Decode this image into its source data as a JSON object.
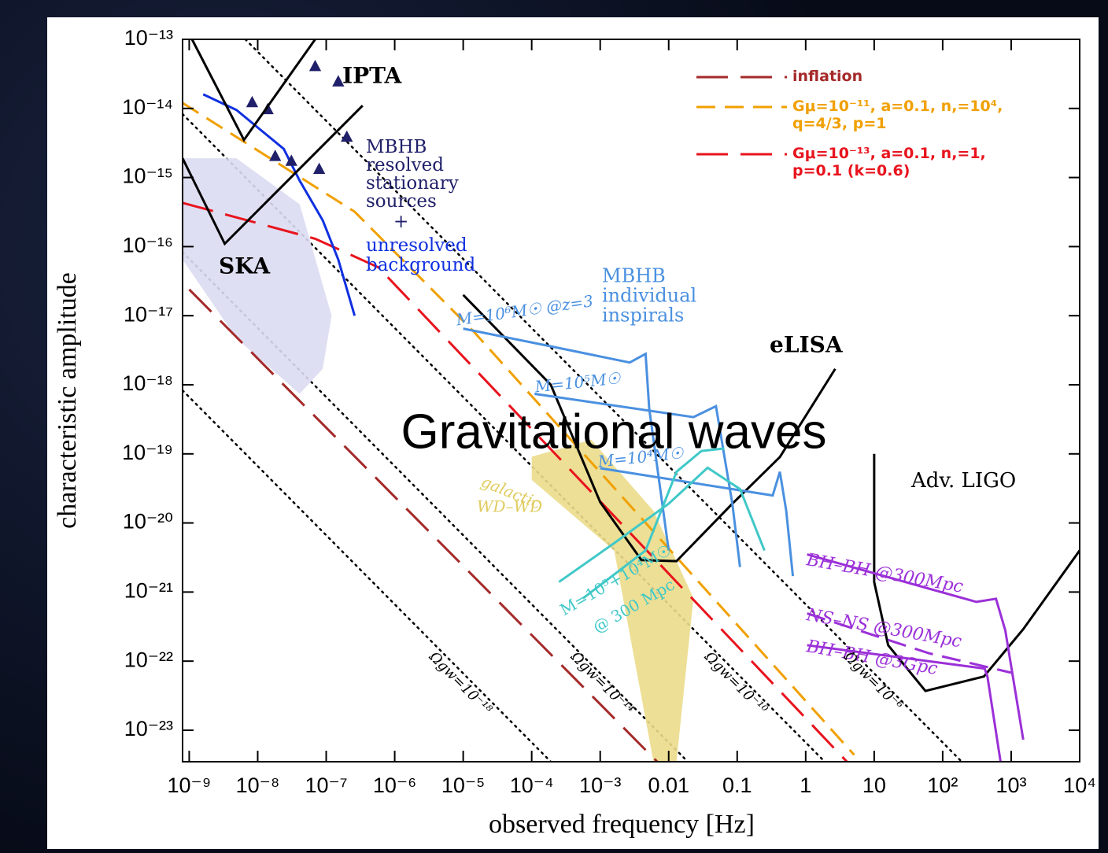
{
  "chart_data": {
    "type": "line",
    "title": "Gravitational waves",
    "x_label": "observed frequency [Hz]",
    "y_label": "characteristic amplitude",
    "xscale": "log",
    "yscale": "log",
    "xlim": [
      8e-10,
      10000
    ],
    "ylim": [
      3.5e-24,
      1e-13
    ],
    "xticks": [
      {
        "value": 1e-09,
        "label": "10⁻⁹"
      },
      {
        "value": 1e-08,
        "label": "10⁻⁸"
      },
      {
        "value": 1e-07,
        "label": "10⁻⁷"
      },
      {
        "value": 1e-06,
        "label": "10⁻⁶"
      },
      {
        "value": 1e-05,
        "label": "10⁻⁵"
      },
      {
        "value": 0.0001,
        "label": "10⁻⁴"
      },
      {
        "value": 0.001,
        "label": "10⁻³"
      },
      0.01,
      0.1,
      1,
      10,
      {
        "value": 100,
        "label": "10²"
      },
      {
        "value": 1000,
        "label": "10³"
      },
      {
        "value": 10000,
        "label": "10⁴"
      }
    ],
    "yticks": [
      {
        "value": 1e-13,
        "label": "10⁻¹³"
      },
      {
        "value": 1e-14,
        "label": "10⁻¹⁴"
      },
      {
        "value": 1e-15,
        "label": "10⁻¹⁵"
      },
      {
        "value": 1e-16,
        "label": "10⁻¹⁶"
      },
      {
        "value": 1e-17,
        "label": "10⁻¹⁷"
      },
      {
        "value": 1e-18,
        "label": "10⁻¹⁸"
      },
      {
        "value": 1e-19,
        "label": "10⁻¹⁹"
      },
      {
        "value": 1e-20,
        "label": "10⁻²⁰"
      },
      {
        "value": 1e-21,
        "label": "10⁻²¹"
      },
      {
        "value": 1e-22,
        "label": "10⁻²²"
      },
      {
        "value": 1e-23,
        "label": "10⁻²³"
      }
    ],
    "legend": "upper right",
    "series": [
      {
        "type": "line",
        "dash": "dotted",
        "color": "#000000",
        "x": [
          8e-10,
          0.00019
        ],
        "values": [
          8.3e-19,
          3.5e-24
        ]
      },
      {
        "type": "line",
        "dash": "dotted",
        "color": "#000000",
        "x": [
          8e-10,
          0.019
        ],
        "values": [
          8.3e-17,
          3.5e-24
        ]
      },
      {
        "type": "line",
        "dash": "dotted",
        "color": "#000000",
        "x": [
          8e-10,
          1.9
        ],
        "values": [
          8.3e-15,
          3.5e-24
        ]
      },
      {
        "type": "line",
        "dash": "dotted",
        "color": "#000000",
        "x": [
          6.6e-09,
          190
        ],
        "values": [
          1e-13,
          3.5e-24
        ]
      },
      {
        "type": "area",
        "color": "#dcdcf2",
        "x": [
          8e-10,
          4.9e-09,
          4.1e-08,
          1.2e-07,
          8.9e-08,
          4.1e-08,
          4.9e-09,
          8e-10
        ],
        "values": [
          1.9e-15,
          1.9e-15,
          4.1e-16,
          1e-17,
          1.7e-18,
          7.4e-19,
          4.7e-18,
          6.5e-17
        ]
      },
      {
        "type": "area",
        "color": "#ebdc8a",
        "x": [
          0.0001,
          0.00074,
          0.006,
          0.023,
          0.013,
          0.006,
          0.0016,
          0.0001
        ],
        "values": [
          9.1e-20,
          1.6e-19,
          1.5e-20,
          8.1e-22,
          3.5e-24,
          3.5e-24,
          4e-21,
          4.2e-20
        ]
      },
      {
        "type": "line",
        "dash": "long",
        "name": "inflation",
        "color": "#a52a2a",
        "x": [
          1e-09,
          0.007
        ],
        "values": [
          2.4e-17,
          3.4e-24
        ]
      },
      {
        "type": "line",
        "dash": "dashed",
        "name": "Gμ=10⁻¹¹, a=0.1, n,=10⁴, q=4/3, p=1",
        "color": "#f0a000",
        "x": [
          8e-10,
          2.6e-07,
          1.4e-05,
          5.1
        ],
        "values": [
          1.2e-14,
          3.2e-16,
          6e-18,
          4.4e-24
        ]
      },
      {
        "type": "line",
        "dash": "long",
        "name": "Gμ=10⁻¹³, a=0.1, n,=1, p=0.1 (k=0.6)",
        "color": "#e8141e",
        "x": [
          8e-10,
          6.9e-08,
          5.8e-07,
          4
        ],
        "values": [
          4.3e-16,
          1.3e-16,
          5e-17,
          3.5e-24
        ]
      },
      {
        "type": "line",
        "dash": "solid",
        "color": "#1030e0",
        "x": [
          1.6e-09,
          4.9e-09,
          1.1e-08,
          2.4e-08,
          4.1e-08,
          8.9e-08,
          1.5e-07,
          2.6e-07
        ],
        "values": [
          1.6e-14,
          9.5e-15,
          4.9e-15,
          2.6e-15,
          9e-16,
          2.4e-16,
          6.5e-17,
          1e-17
        ]
      },
      {
        "type": "scatter",
        "color": "#20206a",
        "x": [
          8.3e-09,
          1.4e-08,
          3.1e-08,
          1.8e-08,
          7.9e-08,
          1.5e-07,
          2e-07,
          6.9e-08
        ],
        "values": [
          1.2e-14,
          9.5e-15,
          1.7e-15,
          2e-15,
          1.3e-15,
          2.4e-14,
          3.8e-15,
          4e-14
        ]
      },
      {
        "type": "line",
        "dash": "solid",
        "color": "#000000",
        "x": [
          8e-10,
          3.3e-09,
          3.4e-07
        ],
        "values": [
          1.9e-15,
          1.1e-16,
          1.1e-14
        ]
      },
      {
        "type": "line",
        "dash": "solid",
        "color": "#000000",
        "x": [
          1.1e-09,
          6.3e-09,
          6.9e-08
        ],
        "values": [
          1e-13,
          3.5e-15,
          1e-13
        ]
      },
      {
        "type": "line",
        "dash": "solid",
        "color": "#000000",
        "x": [
          1e-05,
          0.00019,
          0.001,
          0.004,
          0.013,
          0.085,
          0.42,
          2.7
        ],
        "values": [
          2e-17,
          1e-18,
          2e-20,
          2.9e-21,
          2.8e-21,
          1.9e-20,
          9e-20,
          1.7e-18
        ]
      },
      {
        "type": "line",
        "dash": "solid",
        "color": "#000000",
        "x": [
          10,
          10,
          16,
          56,
          400,
          1500,
          10000
        ],
        "values": [
          1e-19,
          1.4e-21,
          1.7e-22,
          3.7e-23,
          6e-23,
          2.9e-22,
          4e-21
        ]
      },
      {
        "type": "line",
        "dash": "solid",
        "color": "#4a90e0",
        "x": [
          1e-05,
          0.00019,
          0.0027,
          0.0046,
          0.0052,
          0.01
        ],
        "values": [
          6.5e-18,
          3.6e-18,
          2.1e-18,
          2.8e-18,
          4.5e-19,
          4e-21
        ]
      },
      {
        "type": "line",
        "dash": "solid",
        "color": "#4a90e0",
        "x": [
          0.00011,
          0.023,
          0.049,
          0.085,
          0.11
        ],
        "values": [
          7.4e-19,
          3.4e-19,
          4.9e-19,
          1.9e-20,
          2.3e-21
        ]
      },
      {
        "type": "line",
        "dash": "solid",
        "color": "#4a90e0",
        "x": [
          0.001,
          0.33,
          0.42,
          0.52,
          0.65
        ],
        "values": [
          6.2e-20,
          2.5e-20,
          5.5e-20,
          1.5e-20,
          1.7e-21
        ]
      },
      {
        "type": "line",
        "dash": "solid",
        "color": "#40c8c8",
        "x": [
          0.00025,
          0.0016,
          0.01,
          0.037,
          0.11,
          0.25
        ],
        "values": [
          1.4e-21,
          5.1e-21,
          1.9e-20,
          6.3e-20,
          3.1e-20,
          4e-21
        ]
      },
      {
        "type": "line",
        "dash": "solid",
        "color": "#40c8c8",
        "x": [
          0.00056,
          0.0046,
          0.013,
          0.03,
          0.065
        ],
        "values": [
          8.1e-22,
          4e-21,
          5.5e-20,
          1.1e-19,
          1.2e-19
        ]
      },
      {
        "type": "line",
        "dash": "solid",
        "color": "#9b30d8",
        "x": [
          1.05,
          310,
          600,
          820,
          1500
        ],
        "values": [
          3.5e-21,
          7.2e-22,
          8e-22,
          2.8e-22,
          7.3e-24
        ]
      },
      {
        "type": "line",
        "dash": "dashed",
        "color": "#9b30d8",
        "x": [
          1.05,
          63,
          1000
        ],
        "values": [
          4.9e-22,
          1.3e-22,
          6.8e-23
        ]
      },
      {
        "type": "line",
        "dash": "solid",
        "color": "#9b30d8",
        "x": [
          1.05,
          410,
          450,
          700
        ],
        "values": [
          1.7e-22,
          7.8e-23,
          6e-23,
          3.5e-24
        ]
      }
    ],
    "annotations": [
      {
        "text": "IPTA",
        "color": "#000000"
      },
      {
        "text": "SKA",
        "color": "#000000"
      },
      {
        "text": "MBHB",
        "color": "#20206a"
      },
      {
        "text": "resolved",
        "color": "#20206a"
      },
      {
        "text": "stationary",
        "color": "#20206a"
      },
      {
        "text": "sources",
        "color": "#20206a"
      },
      {
        "text": "+",
        "color": "#20206a"
      },
      {
        "text": "unresolved",
        "color": "#1030e0"
      },
      {
        "text": "background",
        "color": "#1030e0"
      },
      {
        "text": "MBHB",
        "color": "#4a90e0"
      },
      {
        "text": "individual",
        "color": "#4a90e0"
      },
      {
        "text": "inspirals",
        "color": "#4a90e0"
      },
      {
        "text": "M=10⁶M☉ @z=3",
        "color": "#4a90e0"
      },
      {
        "text": "M=10⁵M☉",
        "color": "#4a90e0"
      },
      {
        "text": "M=10⁴M☉",
        "color": "#4a90e0"
      },
      {
        "text": "eLISA",
        "color": "#000000"
      },
      {
        "text": "Adv. LIGO",
        "color": "#000000"
      },
      {
        "text": "galactic",
        "color": "#e0cc60"
      },
      {
        "text": "WD–WD",
        "color": "#e0cc60"
      },
      {
        "text": "M=10⁵+10⁴M☉",
        "color": "#40c8c8"
      },
      {
        "text": "@ 300 Mpc",
        "color": "#40c8c8"
      },
      {
        "text": "BH–BH @300Mpc",
        "color": "#9b30d8"
      },
      {
        "text": "NS–NS @300Mpc",
        "color": "#9b30d8"
      },
      {
        "text": "BH–BH @3Gpc",
        "color": "#9b30d8"
      },
      {
        "text": "Ωgw=10⁻¹⁸",
        "color": "#000000"
      },
      {
        "text": "Ωgw=10⁻¹⁴",
        "color": "#000000"
      },
      {
        "text": "Ωgw=10⁻¹⁰",
        "color": "#000000"
      },
      {
        "text": "Ωgw=10⁻⁶",
        "color": "#000000"
      }
    ]
  }
}
